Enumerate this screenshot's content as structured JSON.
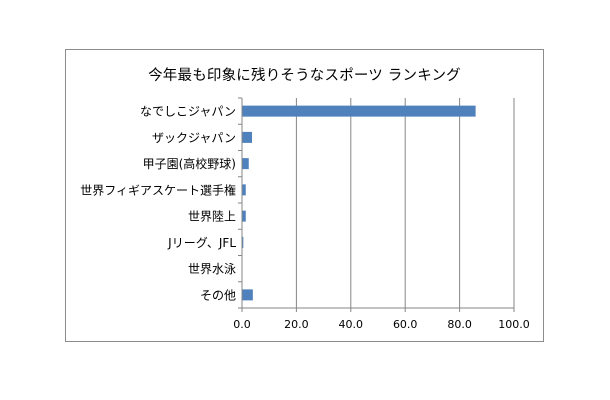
{
  "chart_data": {
    "type": "bar",
    "orientation": "horizontal",
    "title": "今年最も印象に残りそうなスポーツ ランキング",
    "categories": [
      "なでしこジャパン",
      "ザックジャパン",
      "甲子園(高校野球)",
      "世界フィギアスケート選手権",
      "世界陸上",
      "Jリーグ、JFL",
      "世界水泳",
      "その他"
    ],
    "values": [
      85.7,
      3.5,
      2.3,
      1.2,
      1.2,
      0.3,
      0.0,
      3.8
    ],
    "xlim": [
      0,
      100
    ],
    "xticks": [
      "0.0",
      "20.0",
      "40.0",
      "60.0",
      "80.0",
      "100.0"
    ],
    "xlabel": "",
    "ylabel": "",
    "grid": "vertical",
    "legend": "none",
    "bar_color": "#4f81bd",
    "grid_color": "#868686"
  }
}
